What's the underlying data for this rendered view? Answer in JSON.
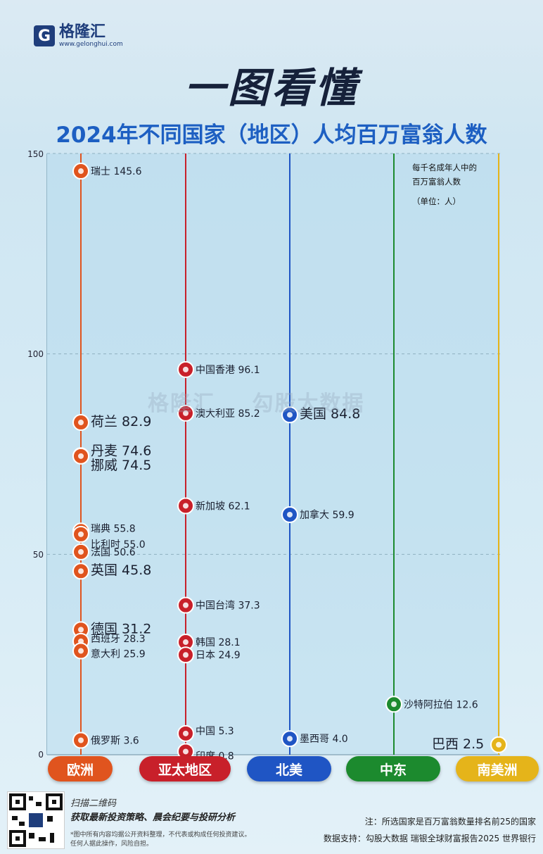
{
  "brand": {
    "name": "格隆汇",
    "url": "www.gelonghui.com",
    "watermark_left": "格隆汇",
    "watermark_right": "勾股大数据"
  },
  "headline": "一图看懂",
  "subtitle": "2024年不同国家（地区）人均百万富翁人数",
  "unit_note": {
    "line1": "每千名成年人中的",
    "line2": "百万富翁人数",
    "line3": "（单位：人）"
  },
  "footer": {
    "scan": "扫描二维码",
    "promo": "获取最新投资策略、晨会纪要与投研分析",
    "disclaimer": "*图中所有内容均据公开资料整理，不代表或构成任何投资建议。任何人据此操作，风险自担。",
    "note": "注：所选国家是百万富翁数量排名前25的国家",
    "source": "数据支持：勾股大数据  瑞银全球财富报告2025 世界银行"
  },
  "chart_data": {
    "type": "scatter",
    "ylim": [
      0,
      150
    ],
    "yticks": [
      0,
      50,
      100,
      150
    ],
    "grid": true,
    "categories": [
      "欧洲",
      "亚太地区",
      "北美",
      "中东",
      "南美洲"
    ],
    "category_colors": [
      "#e0541e",
      "#c8202a",
      "#1f55c4",
      "#1c8a2e",
      "#e5b41a"
    ],
    "series": [
      {
        "category": "欧洲",
        "points": [
          {
            "label": "瑞士",
            "value": 145.6,
            "flag": "flag-switzerland-icon"
          },
          {
            "label": "荷兰",
            "value": 82.9,
            "flag": "flag-netherlands-icon"
          },
          {
            "label": "丹麦",
            "value": 74.6,
            "flag": "flag-denmark-icon"
          },
          {
            "label": "挪威",
            "value": 74.5,
            "flag": "flag-norway-icon"
          },
          {
            "label": "瑞典",
            "value": 55.8,
            "flag": "flag-sweden-icon"
          },
          {
            "label": "比利时",
            "value": 55.0,
            "flag": "flag-belgium-icon"
          },
          {
            "label": "法国",
            "value": 50.6,
            "flag": "flag-france-icon"
          },
          {
            "label": "英国",
            "value": 45.8,
            "flag": "flag-uk-icon"
          },
          {
            "label": "德国",
            "value": 31.2,
            "flag": "flag-germany-icon"
          },
          {
            "label": "西班牙",
            "value": 28.3,
            "flag": "flag-spain-icon"
          },
          {
            "label": "意大利",
            "value": 25.9,
            "flag": "flag-italy-icon"
          },
          {
            "label": "俄罗斯",
            "value": 3.6,
            "flag": "flag-russia-icon"
          }
        ]
      },
      {
        "category": "亚太地区",
        "points": [
          {
            "label": "中国香港",
            "value": 96.1,
            "flag": "flag-hongkong-icon"
          },
          {
            "label": "澳大利亚",
            "value": 85.2,
            "flag": "flag-australia-icon"
          },
          {
            "label": "新加坡",
            "value": 62.1,
            "flag": "flag-singapore-icon"
          },
          {
            "label": "中国台湾",
            "value": 37.3,
            "flag": "flag-taiwan-icon"
          },
          {
            "label": "韩国",
            "value": 28.1,
            "flag": "flag-korea-icon"
          },
          {
            "label": "日本",
            "value": 24.9,
            "flag": "flag-japan-icon"
          },
          {
            "label": "中国",
            "value": 5.3,
            "flag": "flag-china-icon"
          },
          {
            "label": "印度",
            "value": 0.8,
            "flag": "flag-india-icon"
          }
        ]
      },
      {
        "category": "北美",
        "points": [
          {
            "label": "美国",
            "value": 84.8,
            "flag": "flag-usa-icon"
          },
          {
            "label": "加拿大",
            "value": 59.9,
            "flag": "flag-canada-icon"
          },
          {
            "label": "墨西哥",
            "value": 4.0,
            "flag": "flag-mexico-icon"
          }
        ]
      },
      {
        "category": "中东",
        "points": [
          {
            "label": "沙特阿拉伯",
            "value": 12.6,
            "flag": "flag-saudi-icon"
          }
        ]
      },
      {
        "category": "南美洲",
        "points": [
          {
            "label": "巴西",
            "value": 2.5,
            "flag": "flag-brazil-icon"
          }
        ]
      }
    ]
  }
}
